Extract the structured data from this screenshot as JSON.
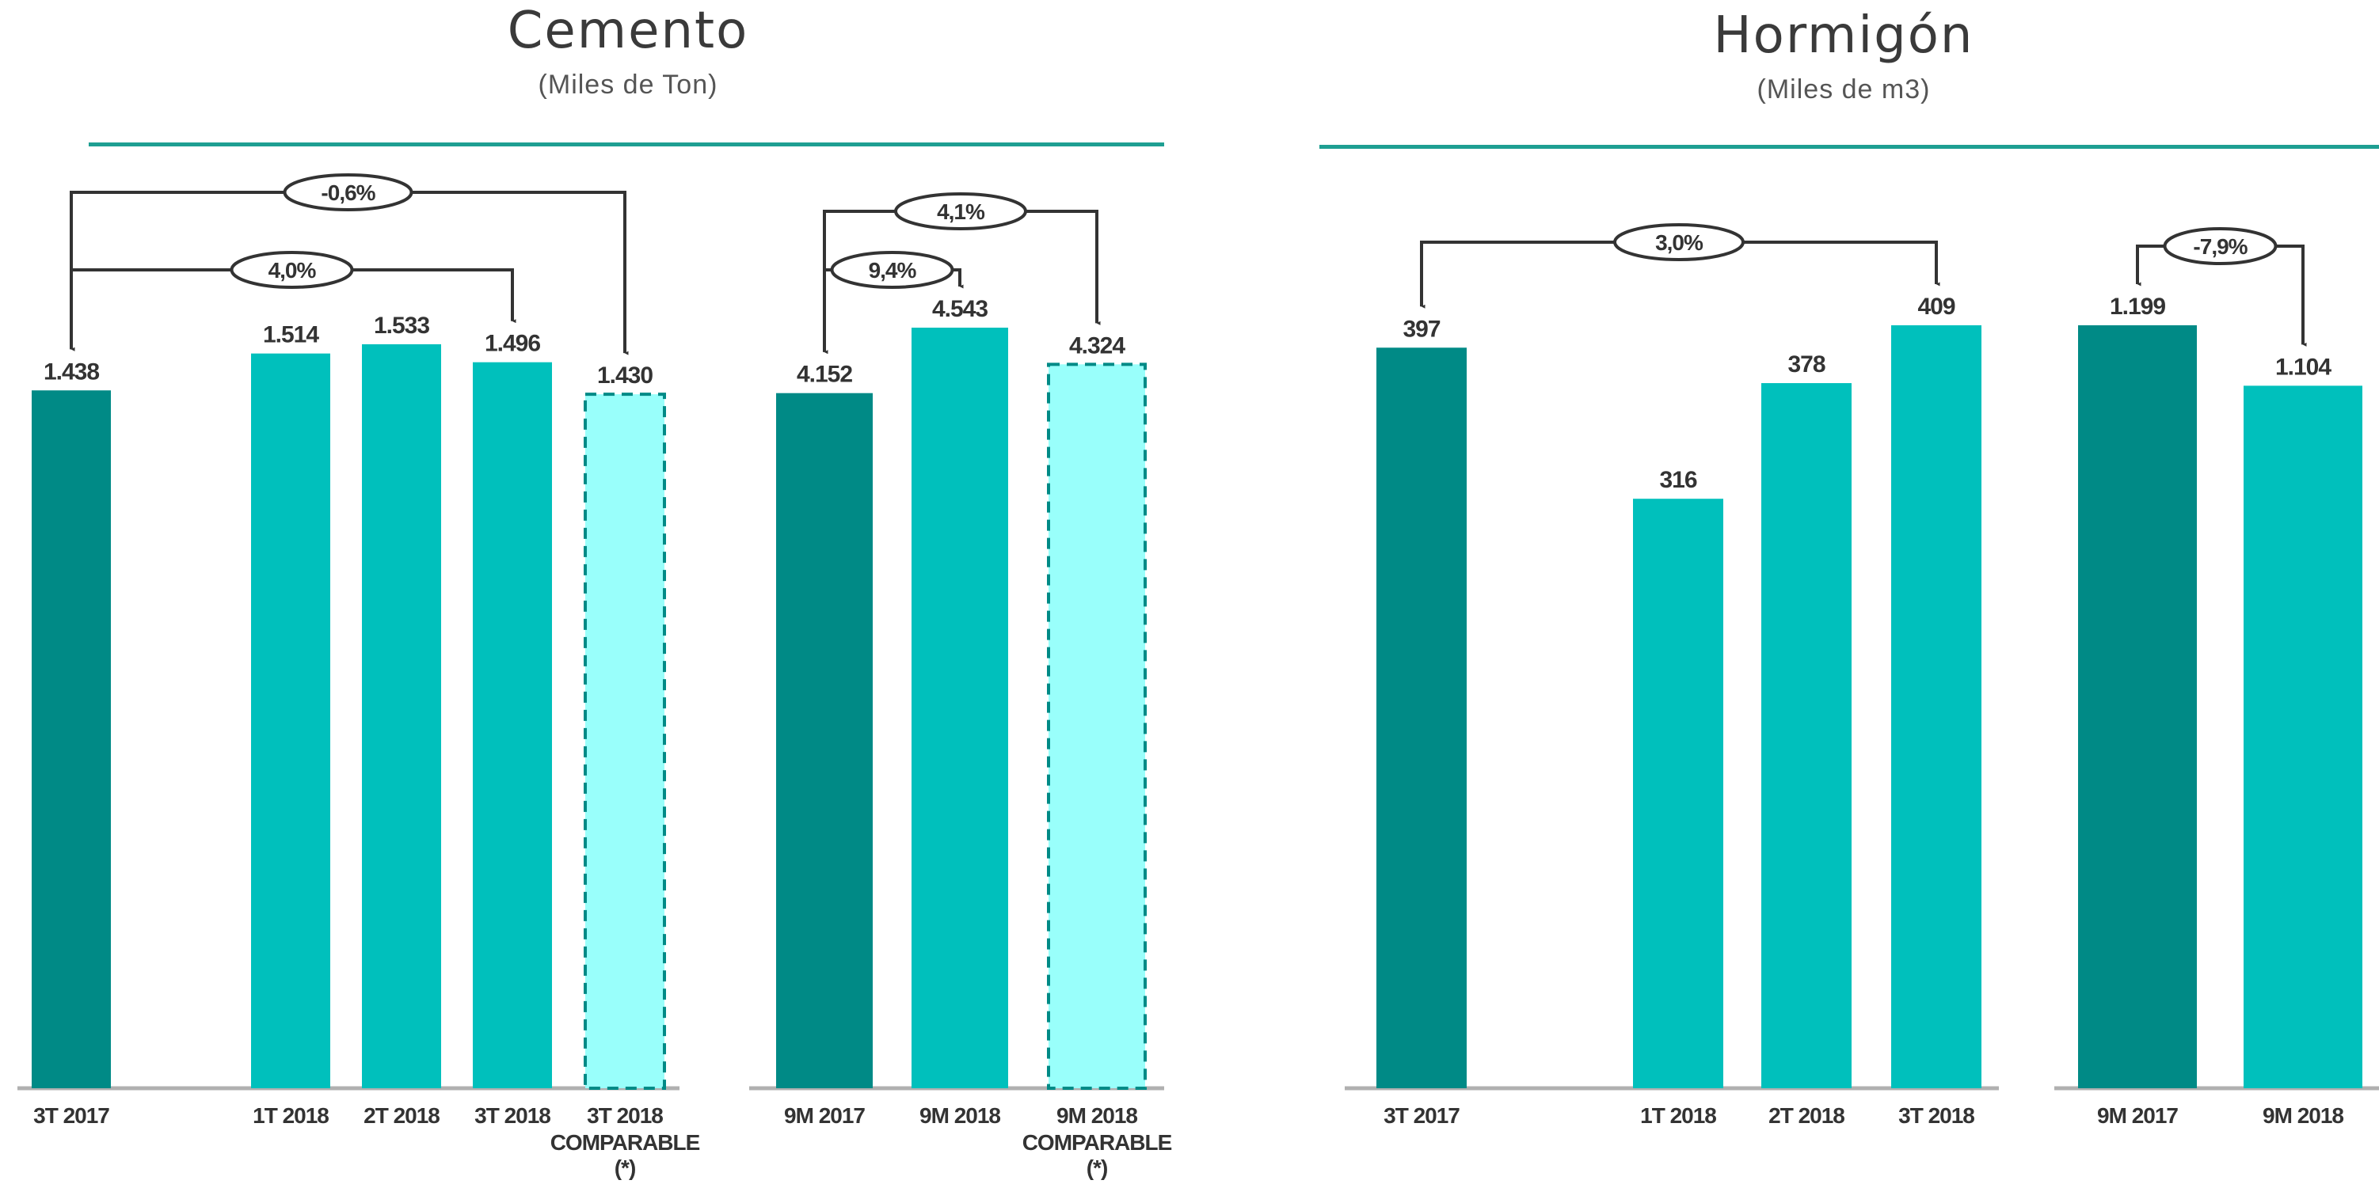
{
  "colors": {
    "dark": "#008a86",
    "mid": "#00c0bc",
    "light": "#99fffb",
    "rule": "#1e9f92",
    "text": "#333333"
  },
  "chart_data": [
    {
      "type": "bar",
      "title": "Cemento",
      "subtitle": "(Miles de Ton)",
      "ylim": [
        0,
        1600
      ],
      "groups": [
        {
          "bars": [
            {
              "category": "3T 2017",
              "value": 1438,
              "label": "1.438",
              "style": "dark"
            },
            {
              "category": "1T 2018",
              "value": 1514,
              "label": "1.514",
              "style": "mid"
            },
            {
              "category": "2T 2018",
              "value": 1533,
              "label": "1.533",
              "style": "mid"
            },
            {
              "category": "3T 2018",
              "value": 1496,
              "label": "1.496",
              "style": "mid"
            },
            {
              "category": "3T 2018",
              "category_line2": "COMPARABLE",
              "category_line3": "(*)",
              "value": 1430,
              "label": "1.430",
              "style": "light"
            }
          ],
          "annotations": [
            {
              "from": 0,
              "to": 4,
              "text": "-0,6%",
              "level": 0
            },
            {
              "from": 0,
              "to": 3,
              "text": "4,0%",
              "level": 1
            }
          ]
        },
        {
          "bars": [
            {
              "category": "9M 2017",
              "value": 4152,
              "label": "4.152",
              "style": "dark"
            },
            {
              "category": "9M 2018",
              "value": 4543,
              "label": "4.543",
              "style": "mid"
            },
            {
              "category": "9M 2018",
              "category_line2": "COMPARABLE",
              "category_line3": "(*)",
              "value": 4324,
              "label": "4.324",
              "style": "light"
            }
          ],
          "annotations": [
            {
              "from": 0,
              "to": 2,
              "text": "4,1%",
              "level": 0
            },
            {
              "from": 0,
              "to": 1,
              "text": "9,4%",
              "level": 1
            }
          ]
        }
      ]
    },
    {
      "type": "bar",
      "title": "Hormigón",
      "subtitle": "(Miles de m3)",
      "groups": [
        {
          "bars": [
            {
              "category": "3T 2017",
              "value": 397,
              "label": "397",
              "style": "dark"
            },
            {
              "category": "1T 2018",
              "value": 316,
              "label": "316",
              "style": "mid"
            },
            {
              "category": "2T 2018",
              "value": 378,
              "label": "378",
              "style": "mid"
            },
            {
              "category": "3T 2018",
              "value": 409,
              "label": "409",
              "style": "mid"
            }
          ],
          "annotations": [
            {
              "from": 0,
              "to": 3,
              "text": "3,0%",
              "level": 0
            }
          ]
        },
        {
          "bars": [
            {
              "category": "9M 2017",
              "value": 1199,
              "label": "1.199",
              "style": "dark"
            },
            {
              "category": "9M 2018",
              "value": 1104,
              "label": "1.104",
              "style": "mid"
            }
          ],
          "annotations": [
            {
              "from": 0,
              "to": 1,
              "text": "-7,9%",
              "level": 0
            }
          ]
        }
      ]
    }
  ]
}
